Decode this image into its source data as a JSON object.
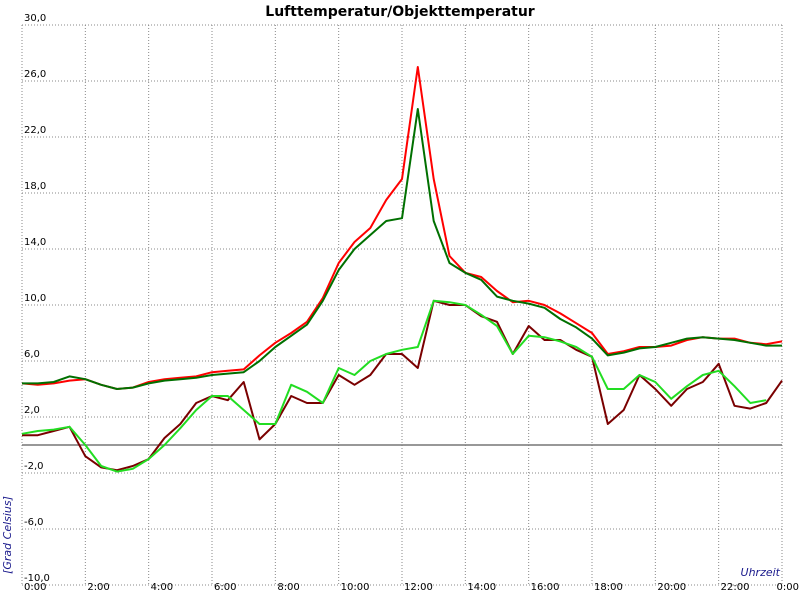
{
  "chart_data": {
    "type": "line",
    "title": "Lufttemperatur/Objekttemperatur",
    "y_label": "[Grad Celsius]",
    "x_label": "Uhrzeit",
    "x": [
      0,
      0.5,
      1,
      1.5,
      2,
      2.5,
      3,
      3.5,
      4,
      4.5,
      5,
      5.5,
      6,
      6.5,
      7,
      7.5,
      8,
      8.5,
      9,
      9.5,
      10,
      10.5,
      11,
      11.5,
      12,
      12.5,
      13,
      13.5,
      14,
      14.5,
      15,
      15.5,
      16,
      16.5,
      17,
      17.5,
      18,
      18.5,
      19,
      19.5,
      20,
      20.5,
      21,
      21.5,
      22,
      22.5,
      23,
      23.5,
      24
    ],
    "xlim": [
      0,
      24
    ],
    "xticks": [
      {
        "value": 0,
        "label": "0:00"
      },
      {
        "value": 2,
        "label": "2:00"
      },
      {
        "value": 4,
        "label": "4:00"
      },
      {
        "value": 6,
        "label": "6:00"
      },
      {
        "value": 8,
        "label": "8:00"
      },
      {
        "value": 10,
        "label": "10:00"
      },
      {
        "value": 12,
        "label": "12:00"
      },
      {
        "value": 14,
        "label": "14:00"
      },
      {
        "value": 16,
        "label": "16:00"
      },
      {
        "value": 18,
        "label": "18:00"
      },
      {
        "value": 20,
        "label": "20:00"
      },
      {
        "value": 22,
        "label": "22:00"
      },
      {
        "value": 24,
        "label": "0:00"
      }
    ],
    "ylim": [
      -10,
      30
    ],
    "yticks": [
      {
        "value": -10,
        "label": "-10,0"
      },
      {
        "value": -6,
        "label": "-6,0"
      },
      {
        "value": -2,
        "label": "-2,0"
      },
      {
        "value": 2,
        "label": "2,0"
      },
      {
        "value": 6,
        "label": "6,0"
      },
      {
        "value": 10,
        "label": "10,0"
      },
      {
        "value": 14,
        "label": "14,0"
      },
      {
        "value": 18,
        "label": "18,0"
      },
      {
        "value": 22,
        "label": "22,0"
      },
      {
        "value": 26,
        "label": "26,0"
      },
      {
        "value": 30,
        "label": "30,0"
      }
    ],
    "grid": true,
    "zero_line": 0,
    "series": [
      {
        "color": "#ff0000",
        "values": [
          4.4,
          4.3,
          4.4,
          4.6,
          4.7,
          4.3,
          4.0,
          4.1,
          4.5,
          4.7,
          4.8,
          4.9,
          5.2,
          5.3,
          5.4,
          6.4,
          7.3,
          8.0,
          8.8,
          10.5,
          13.0,
          14.5,
          15.5,
          17.5,
          19.0,
          27.0,
          19.0,
          13.5,
          12.3,
          12.0,
          11.0,
          10.2,
          10.3,
          10.0,
          9.4,
          8.7,
          8.0,
          6.5,
          6.7,
          7.0,
          7.0,
          7.1,
          7.5,
          7.7,
          7.6,
          7.6,
          7.3,
          7.2,
          7.4
        ]
      },
      {
        "color": "#007000",
        "values": [
          4.4,
          4.4,
          4.5,
          4.9,
          4.7,
          4.3,
          4.0,
          4.1,
          4.4,
          4.6,
          4.7,
          4.8,
          5.0,
          5.1,
          5.2,
          6.0,
          7.0,
          7.8,
          8.6,
          10.3,
          12.5,
          14.0,
          15.0,
          16.0,
          16.2,
          24.0,
          16.0,
          13.0,
          12.3,
          11.8,
          10.6,
          10.3,
          10.1,
          9.8,
          9.0,
          8.4,
          7.6,
          6.4,
          6.6,
          6.9,
          7.0,
          7.3,
          7.6,
          7.7,
          7.6,
          7.5,
          7.3,
          7.1,
          7.1
        ]
      },
      {
        "color": "#7a0000",
        "values": [
          0.7,
          0.7,
          1.0,
          1.3,
          -0.8,
          -1.6,
          -1.8,
          -1.5,
          -1.0,
          0.5,
          1.5,
          3.0,
          3.5,
          3.2,
          4.5,
          0.4,
          1.5,
          3.5,
          3.0,
          3.0,
          5.0,
          4.3,
          5.0,
          6.5,
          6.5,
          5.5,
          10.3,
          10.0,
          10.0,
          9.2,
          8.8,
          6.5,
          8.5,
          7.5,
          7.5,
          6.8,
          6.3,
          1.5,
          2.5,
          5.0,
          4.0,
          2.8,
          4.0,
          4.5,
          5.8,
          2.8,
          2.6,
          3.0,
          4.6
        ]
      },
      {
        "color": "#22dd22",
        "values": [
          0.8,
          1.0,
          1.1,
          1.3,
          0.0,
          -1.5,
          -1.9,
          -1.7,
          -1.0,
          0.0,
          1.2,
          2.5,
          3.5,
          3.5,
          2.5,
          1.5,
          1.5,
          4.3,
          3.8,
          3.0,
          5.5,
          5.0,
          6.0,
          6.5,
          6.8,
          7.0,
          10.3,
          10.2,
          10.0,
          9.3,
          8.5,
          6.5,
          7.8,
          7.7,
          7.4,
          7.0,
          6.3,
          4.0,
          4.0,
          5.0,
          4.5,
          3.3,
          4.2,
          5.0,
          5.3,
          4.2,
          3.0,
          3.2,
          null
        ]
      }
    ]
  }
}
